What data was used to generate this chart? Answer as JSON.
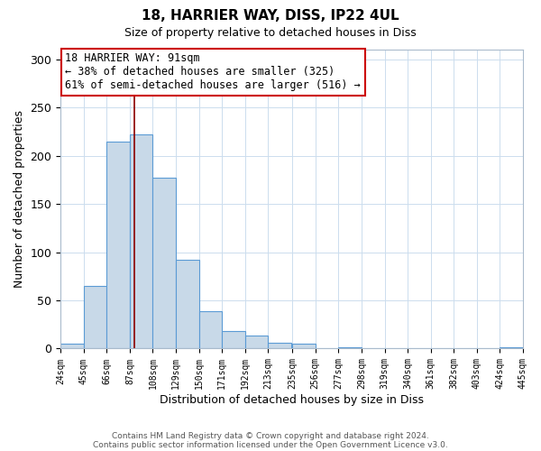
{
  "title": "18, HARRIER WAY, DISS, IP22 4UL",
  "subtitle": "Size of property relative to detached houses in Diss",
  "xlabel": "Distribution of detached houses by size in Diss",
  "ylabel": "Number of detached properties",
  "footer_lines": [
    "Contains HM Land Registry data © Crown copyright and database right 2024.",
    "Contains public sector information licensed under the Open Government Licence v3.0."
  ],
  "bar_edges": [
    24,
    45,
    66,
    87,
    108,
    129,
    150,
    171,
    192,
    213,
    235,
    256,
    277,
    298,
    319,
    340,
    361,
    382,
    403,
    424,
    445
  ],
  "bar_heights": [
    5,
    65,
    215,
    222,
    177,
    92,
    39,
    18,
    14,
    6,
    5,
    0,
    1,
    0,
    0,
    0,
    0,
    0,
    0,
    1
  ],
  "bar_color": "#c8d9e8",
  "bar_edge_color": "#5b9bd5",
  "reference_line_x": 91,
  "ylim": [
    0,
    310
  ],
  "annotation_line1": "18 HARRIER WAY: 91sqm",
  "annotation_line2": "← 38% of detached houses are smaller (325)",
  "annotation_line3": "61% of semi-detached houses are larger (516) →",
  "ref_line_color": "#8b0000",
  "box_edge_color": "#cc0000",
  "tick_labels": [
    "24sqm",
    "45sqm",
    "66sqm",
    "87sqm",
    "108sqm",
    "129sqm",
    "150sqm",
    "171sqm",
    "192sqm",
    "213sqm",
    "235sqm",
    "256sqm",
    "277sqm",
    "298sqm",
    "319sqm",
    "340sqm",
    "361sqm",
    "382sqm",
    "403sqm",
    "424sqm",
    "445sqm"
  ],
  "yticks": [
    0,
    50,
    100,
    150,
    200,
    250,
    300
  ]
}
